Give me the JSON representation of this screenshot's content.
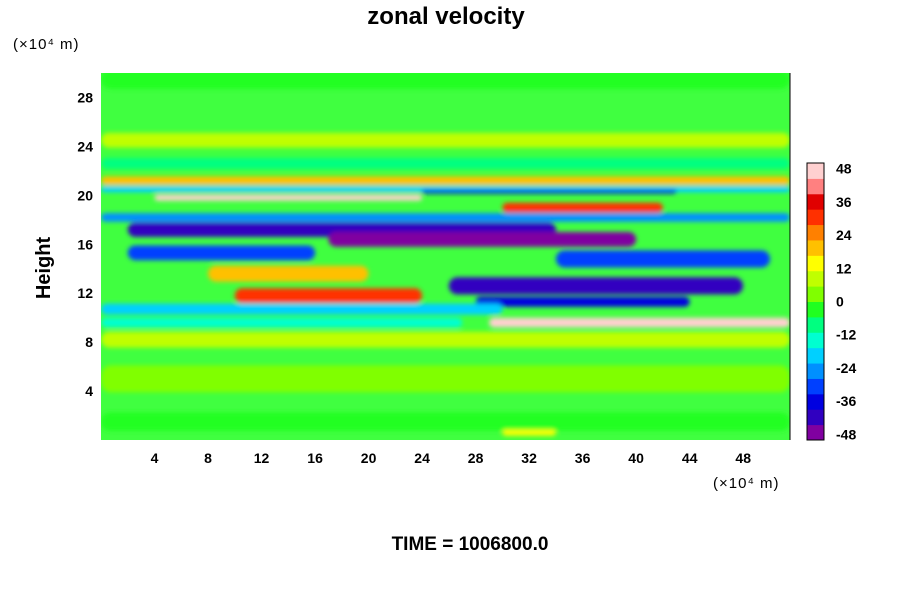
{
  "chart_data": {
    "type": "heatmap",
    "title": "zonal velocity",
    "ylabel": "Height",
    "xlabel": "",
    "x_unit_label": "(×10⁴ m)",
    "y_unit_label": "(×10⁴ m)",
    "footer": "TIME = 1006800.0",
    "xlim": [
      0,
      51.5
    ],
    "ylim": [
      0,
      30
    ],
    "x_ticks": [
      4,
      8,
      12,
      16,
      20,
      24,
      28,
      32,
      36,
      40,
      44,
      48
    ],
    "y_ticks": [
      4,
      8,
      12,
      16,
      20,
      24,
      28
    ],
    "colorbar": {
      "min": -50,
      "max": 50,
      "ticks": [
        48,
        36,
        24,
        12,
        0,
        -12,
        -24,
        -36,
        -48
      ],
      "palette": [
        "#8000a0",
        "#3000c0",
        "#0000e0",
        "#0040ff",
        "#0090ff",
        "#00d0ff",
        "#00ffd0",
        "#00ff80",
        "#20ff20",
        "#80ff00",
        "#c0ff00",
        "#ffff00",
        "#ffc000",
        "#ff8000",
        "#ff3000",
        "#e00000",
        "#ff8080",
        "#ffd0d0"
      ]
    },
    "grid": false,
    "legend": "colorbar-right",
    "features": [
      {
        "x0": 0,
        "x1": 51.5,
        "y": 29.5,
        "h": 1.6,
        "v": -5
      },
      {
        "x0": 0,
        "x1": 51.5,
        "y": 24.5,
        "h": 1.2,
        "v": 10
      },
      {
        "x0": 0,
        "x1": 51.5,
        "y": 22.6,
        "h": 0.9,
        "v": -6
      },
      {
        "x0": 0,
        "x1": 51.5,
        "y": 21.2,
        "h": 0.7,
        "v": 20
      },
      {
        "x0": 0,
        "x1": 51.5,
        "y": 20.5,
        "h": 0.5,
        "v": -20
      },
      {
        "x0": 4,
        "x1": 24,
        "y": 19.8,
        "h": 0.5,
        "v": 45
      },
      {
        "x0": 24,
        "x1": 43,
        "y": 20.3,
        "h": 0.3,
        "v": -35
      },
      {
        "x0": 30,
        "x1": 42,
        "y": 19.0,
        "h": 0.8,
        "v": 32
      },
      {
        "x0": 0,
        "x1": 51.5,
        "y": 18.2,
        "h": 0.7,
        "v": -24
      },
      {
        "x0": 2,
        "x1": 34,
        "y": 17.2,
        "h": 1.2,
        "v": -40
      },
      {
        "x0": 17,
        "x1": 40,
        "y": 16.4,
        "h": 1.2,
        "v": -48
      },
      {
        "x0": 2,
        "x1": 16,
        "y": 15.3,
        "h": 1.2,
        "v": -30
      },
      {
        "x0": 34,
        "x1": 50,
        "y": 14.8,
        "h": 1.4,
        "v": -30
      },
      {
        "x0": 8,
        "x1": 20,
        "y": 13.6,
        "h": 1.3,
        "v": 22
      },
      {
        "x0": 26,
        "x1": 48,
        "y": 12.6,
        "h": 1.4,
        "v": -42
      },
      {
        "x0": 10,
        "x1": 24,
        "y": 11.8,
        "h": 1.2,
        "v": 28
      },
      {
        "x0": 28,
        "x1": 44,
        "y": 11.3,
        "h": 0.8,
        "v": -38
      },
      {
        "x0": 0,
        "x1": 30,
        "y": 10.7,
        "h": 0.9,
        "v": -18
      },
      {
        "x0": 29,
        "x1": 51.5,
        "y": 9.6,
        "h": 0.8,
        "v": 46
      },
      {
        "x0": 0,
        "x1": 27,
        "y": 9.6,
        "h": 0.8,
        "v": -14
      },
      {
        "x0": 0,
        "x1": 51.5,
        "y": 8.2,
        "h": 1.3,
        "v": 8
      },
      {
        "x0": 0,
        "x1": 51.5,
        "y": 5.0,
        "h": 2.2,
        "v": 5
      },
      {
        "x0": 0,
        "x1": 51.5,
        "y": 1.5,
        "h": 1.5,
        "v": -4
      },
      {
        "x0": 30,
        "x1": 34,
        "y": 0.6,
        "h": 0.5,
        "v": 16
      }
    ]
  }
}
